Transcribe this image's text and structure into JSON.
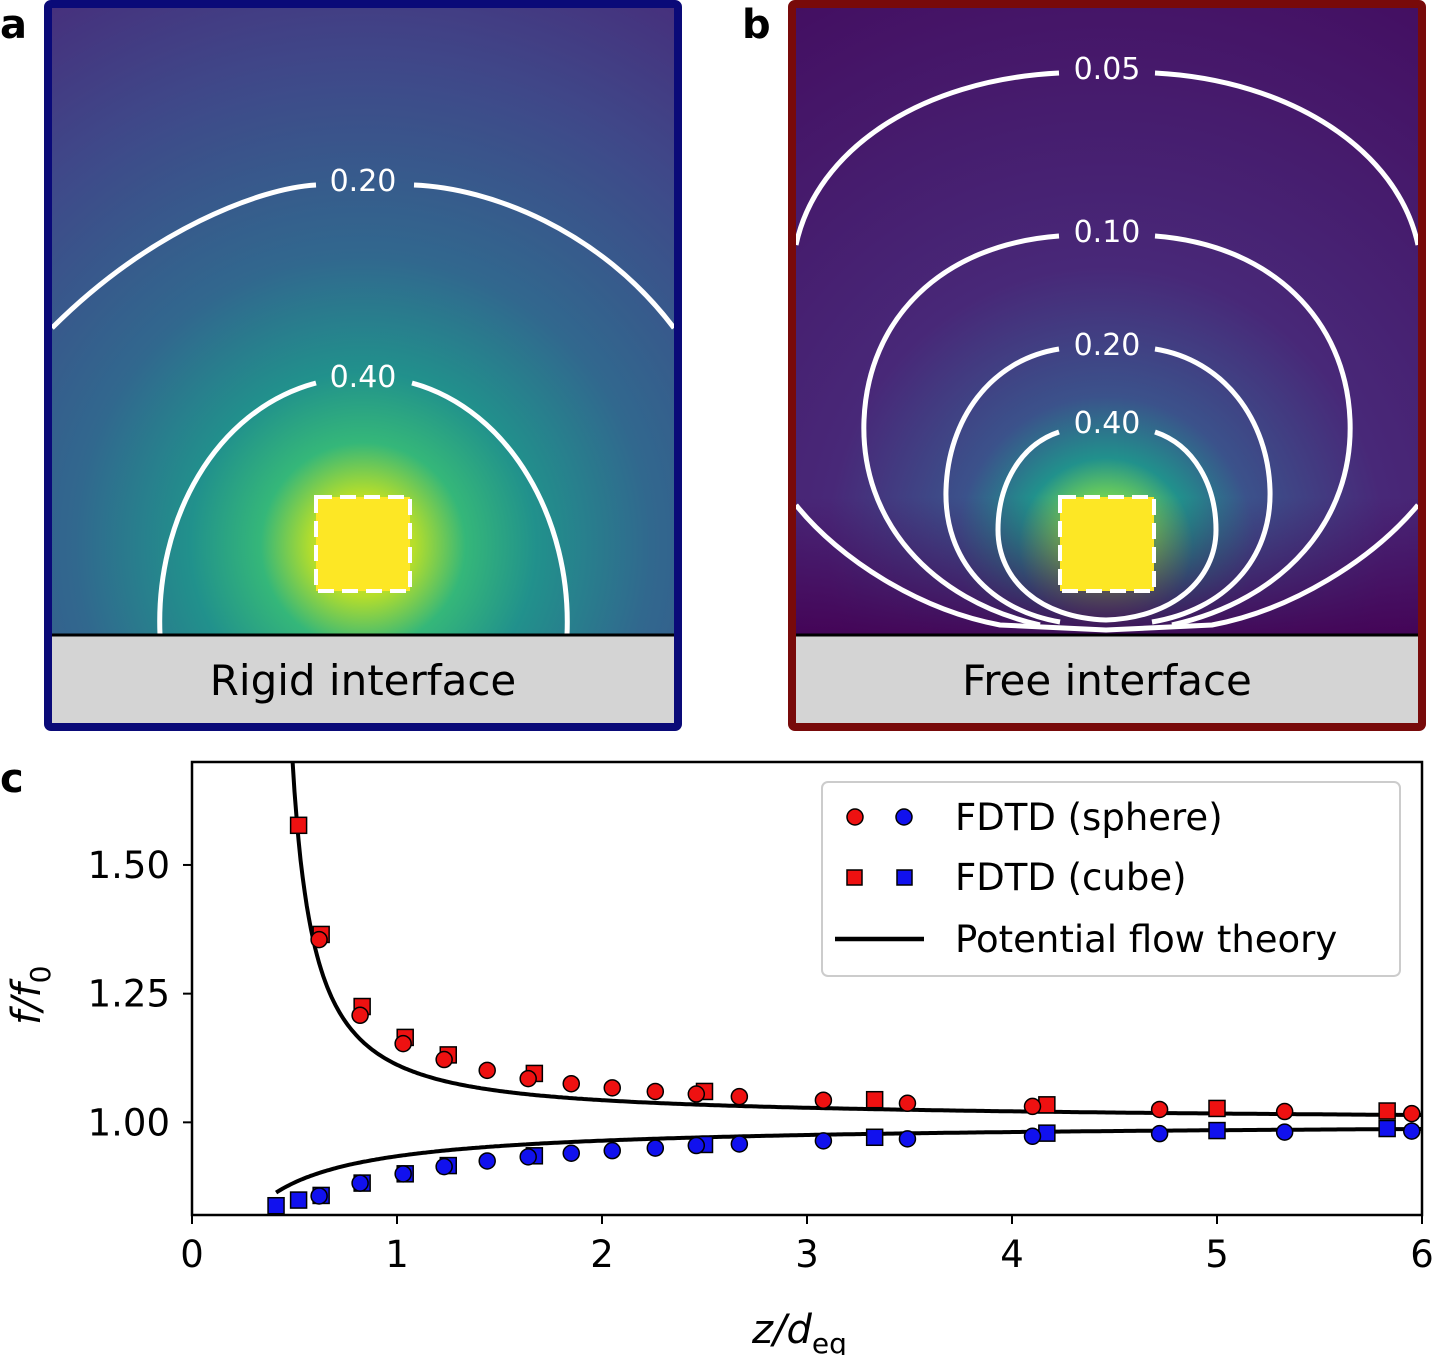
{
  "panel_a": {
    "letter": "a",
    "interface_label": "Rigid interface",
    "frame_color": "#0a0a78",
    "contour_labels": [
      "0.20",
      "0.40"
    ]
  },
  "panel_b": {
    "letter": "b",
    "interface_label": "Free interface",
    "frame_color": "#780a0a",
    "contour_labels": [
      "0.05",
      "0.10",
      "0.20",
      "0.40"
    ]
  },
  "panel_c": {
    "letter": "c"
  },
  "chart_data": {
    "type": "scatter",
    "xlabel": "z/d",
    "xlabel_sub": "eq",
    "ylabel": "f/f",
    "ylabel_sub": "0",
    "xlim": [
      0,
      6
    ],
    "ylim": [
      0.82,
      1.7
    ],
    "xticks": [
      0,
      1,
      2,
      3,
      4,
      5,
      6
    ],
    "yticks": [
      1.0,
      1.25,
      1.5
    ],
    "ytick_labels": [
      "1.00",
      "1.25",
      "1.50"
    ],
    "legend_position": "top-right",
    "legend": [
      {
        "label": "FDTD (sphere)",
        "marker": "circle"
      },
      {
        "label": "FDTD (cube)",
        "marker": "square"
      },
      {
        "label": "Potential flow theory",
        "marker": "line"
      }
    ],
    "colors": {
      "red": "#ee1111",
      "blue": "#1111ee",
      "line": "#000000"
    },
    "series": [
      {
        "name": "FDTD (sphere)",
        "color": "red",
        "marker": "circle",
        "x": [
          0.62,
          0.82,
          1.03,
          1.23,
          1.44,
          1.64,
          1.85,
          2.05,
          2.26,
          2.46,
          2.67,
          3.08,
          3.49,
          4.1,
          4.72,
          5.33,
          5.95
        ],
        "y": [
          1.355,
          1.208,
          1.153,
          1.122,
          1.101,
          1.085,
          1.075,
          1.067,
          1.06,
          1.055,
          1.05,
          1.043,
          1.037,
          1.031,
          1.025,
          1.021,
          1.017
        ]
      },
      {
        "name": "FDTD (sphere)",
        "color": "blue",
        "marker": "circle",
        "x": [
          0.62,
          0.82,
          1.03,
          1.23,
          1.44,
          1.64,
          1.85,
          2.05,
          2.26,
          2.46,
          2.67,
          3.08,
          3.49,
          4.1,
          4.72,
          5.33,
          5.95
        ],
        "y": [
          0.857,
          0.882,
          0.9,
          0.914,
          0.925,
          0.933,
          0.94,
          0.945,
          0.95,
          0.955,
          0.958,
          0.964,
          0.968,
          0.973,
          0.978,
          0.981,
          0.983
        ]
      },
      {
        "name": "FDTD (cube)",
        "color": "red",
        "marker": "square",
        "x": [
          0.52,
          0.63,
          0.83,
          1.04,
          1.25,
          1.67,
          2.5,
          3.33,
          4.17,
          5.0,
          5.83
        ],
        "y": [
          1.577,
          1.365,
          1.225,
          1.165,
          1.131,
          1.095,
          1.06,
          1.044,
          1.034,
          1.027,
          1.022
        ]
      },
      {
        "name": "FDTD (cube)",
        "color": "blue",
        "marker": "square",
        "x": [
          0.41,
          0.52,
          0.63,
          0.83,
          1.04,
          1.25,
          1.67,
          2.5,
          3.33,
          4.17,
          5.0,
          5.83
        ],
        "y": [
          0.838,
          0.849,
          0.858,
          0.882,
          0.9,
          0.916,
          0.935,
          0.957,
          0.971,
          0.979,
          0.984,
          0.988
        ]
      }
    ]
  }
}
